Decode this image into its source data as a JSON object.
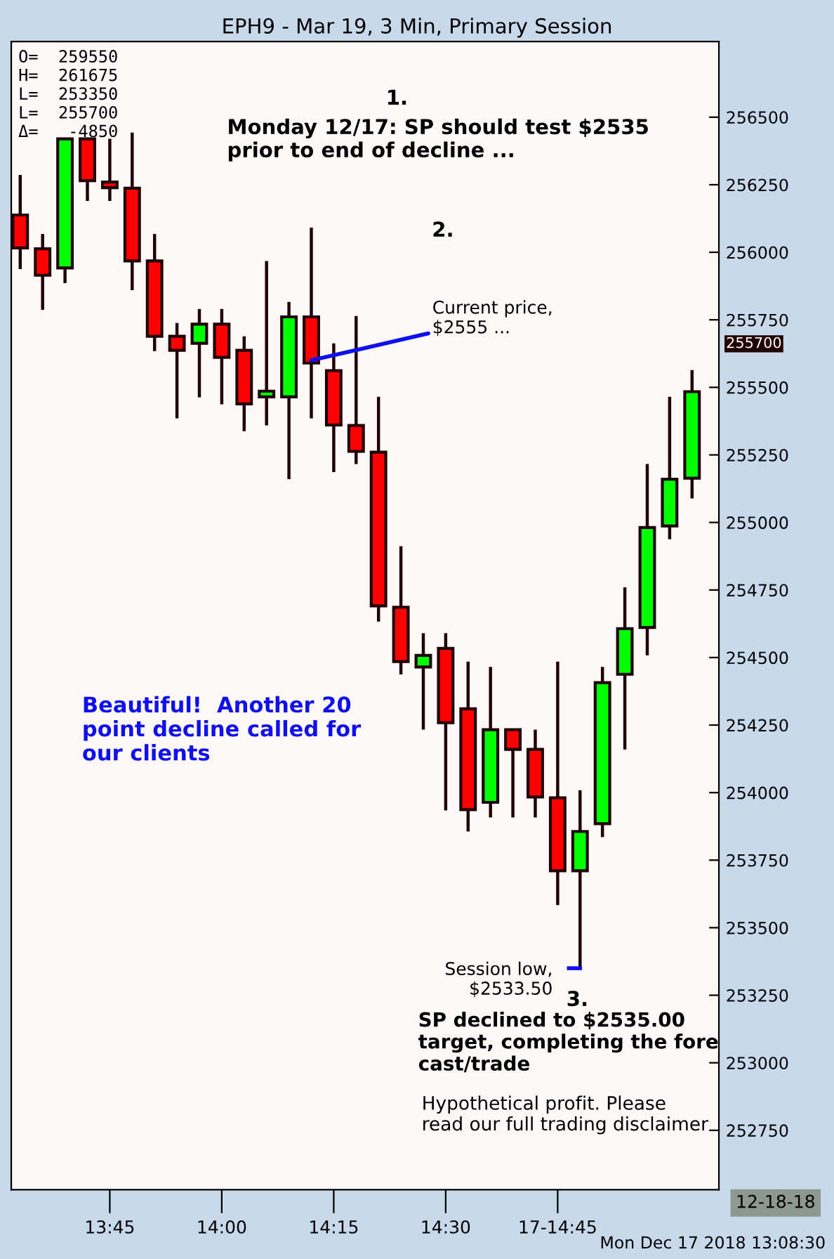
{
  "chart_data": {
    "type": "candlestick",
    "title": "EPH9 - Mar 19, 3 Min, Primary Session",
    "x": [
      13.55,
      13.6,
      13.65,
      13.7,
      13.75,
      13.8,
      13.85,
      13.9,
      13.95,
      14.0,
      14.05,
      14.1,
      14.15,
      14.2,
      14.25,
      14.3,
      14.35,
      14.4,
      14.45,
      14.5,
      14.55,
      14.6,
      14.65,
      14.7,
      14.75,
      14.8,
      14.85,
      14.9,
      14.95,
      15.0,
      15.05
    ],
    "ohlc": [
      [
        256138,
        256286,
        255938,
        256016
      ],
      [
        256013,
        256068,
        255787,
        255915
      ],
      [
        255942,
        256420,
        255886,
        256420
      ],
      [
        256420,
        256420,
        256190,
        256265
      ],
      [
        256260,
        256420,
        256190,
        256239
      ],
      [
        256237,
        256443,
        255860,
        255968
      ],
      [
        255968,
        256068,
        255634,
        255689
      ],
      [
        255689,
        255738,
        255385,
        255637
      ],
      [
        255663,
        255790,
        255463,
        255734
      ],
      [
        255734,
        255790,
        255437,
        255611
      ],
      [
        255637,
        255689,
        255338,
        255439
      ],
      [
        255465,
        255968,
        255359,
        255486
      ],
      [
        255465,
        255816,
        255160,
        255761
      ],
      [
        255761,
        256091,
        255385,
        255590
      ],
      [
        255562,
        255663,
        255186,
        255361
      ],
      [
        255359,
        255764,
        255216,
        255263
      ],
      [
        255260,
        255465,
        254633,
        254691
      ],
      [
        254686,
        254912,
        254437,
        254485
      ],
      [
        254465,
        254590,
        254233,
        254508
      ],
      [
        254534,
        254590,
        253934,
        254259
      ],
      [
        254310,
        254485,
        253856,
        253937
      ],
      [
        253964,
        254465,
        253908,
        254233
      ],
      [
        254233,
        254233,
        253908,
        254160
      ],
      [
        254160,
        254233,
        253908,
        253984
      ],
      [
        253981,
        254485,
        253584,
        253711
      ],
      [
        253711,
        254009,
        253350,
        253856
      ],
      [
        253885,
        254465,
        253835,
        254407
      ],
      [
        254438,
        254760,
        254160,
        254607
      ],
      [
        254611,
        255216,
        254508,
        254981
      ],
      [
        254987,
        255465,
        254938,
        255160
      ],
      [
        255164,
        255564,
        255089,
        255484
      ]
    ],
    "colors": [
      "#ff0000",
      "#ff0000",
      "#00ff00",
      "#ff0000",
      "#ff0000",
      "#ff0000",
      "#ff0000",
      "#ff0000",
      "#00ff00",
      "#ff0000",
      "#ff0000",
      "#00ff00",
      "#00ff00",
      "#ff0000",
      "#ff0000",
      "#ff0000",
      "#ff0000",
      "#ff0000",
      "#00ff00",
      "#ff0000",
      "#ff0000",
      "#00ff00",
      "#ff0000",
      "#ff0000",
      "#ff0000",
      "#00ff00",
      "#00ff00",
      "#00ff00",
      "#00ff00",
      "#00ff00",
      "#00ff00"
    ],
    "xlim": [
      13.53,
      15.11
    ],
    "xticks": [
      {
        "value": 13.75,
        "label": "13:45"
      },
      {
        "value": 14.0,
        "label": "14:00"
      },
      {
        "value": 14.25,
        "label": "14:15"
      },
      {
        "value": 14.5,
        "label": "14:30"
      },
      {
        "value": 14.75,
        "label": "17-14:45"
      }
    ],
    "ylim": [
      252530,
      256780
    ],
    "yticks": [
      252750,
      253000,
      253250,
      253500,
      253750,
      254000,
      254250,
      254500,
      254750,
      255000,
      255250,
      255500,
      255750,
      256000,
      256250,
      256500
    ],
    "grid": false,
    "annotations": [
      "O=  259550\nH=  261675\nL=  253350\nL=  255700\nΔ=   -4850",
      "1.",
      "Monday 12/17: SP should test $2535\nprior to end of decline ...",
      "2.",
      {
        "text": "Current price,\n$2555 ...",
        "x": 14.2,
        "y": 255600
      },
      "Beautiful!  Another 20\npoint decline called for\nour clients",
      {
        "text": "Session low,\n$2533.50",
        "x": 14.8,
        "y": 253350
      },
      "3.",
      "SP declined to $2535.00\ntarget, completing the fore\ncast/trade",
      "Hypothetical profit. Please\nread our full trading disclaimer",
      "255700",
      "12-18-18",
      "Mon Dec 17 2018 13:08:30"
    ]
  }
}
